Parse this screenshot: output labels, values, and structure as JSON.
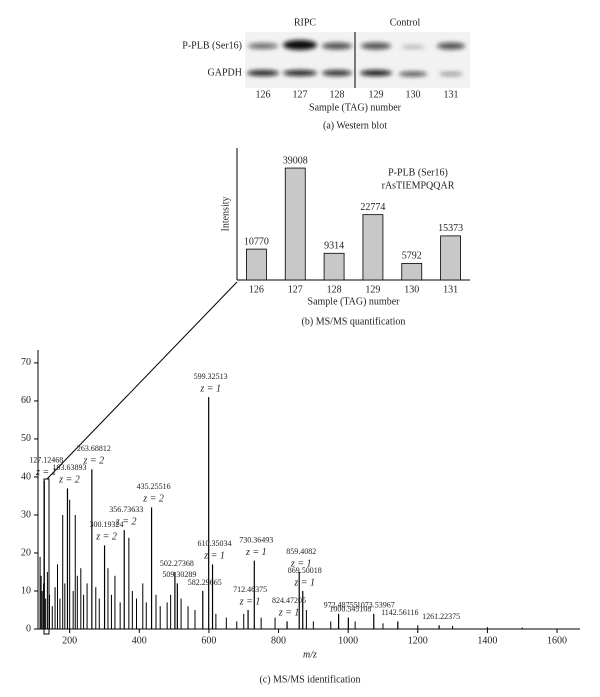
{
  "western_blot": {
    "groups": [
      "RIPC",
      "Control"
    ],
    "rows": [
      "P-PLB (Ser16)",
      "GAPDH"
    ],
    "lanes": [
      "126",
      "127",
      "128",
      "129",
      "130",
      "131"
    ],
    "xlabel": "Sample (TAG) number",
    "caption": "(a) Western blot"
  },
  "chart_data": [
    {
      "type": "bar",
      "categories": [
        "126",
        "127",
        "128",
        "129",
        "130",
        "131"
      ],
      "values": [
        10770,
        39008,
        9314,
        22774,
        5792,
        15373
      ],
      "color": "#c8c8c8",
      "ylim": [
        0,
        46000
      ],
      "xlabel": "Sample (TAG) number",
      "ylabel": "Intensity",
      "annotations": [
        "P-PLB (Ser16)",
        "rAsTIEMPQQAR"
      ],
      "caption": "(b) MS/MS quantification"
    },
    {
      "type": "spectrum",
      "xlim": [
        109,
        1666
      ],
      "ylim": [
        0,
        73.4
      ],
      "xticks": [
        200,
        400,
        600,
        800,
        1000,
        1200,
        1400,
        1600
      ],
      "yticks": [
        0,
        10,
        20,
        30,
        40,
        50,
        60,
        70
      ],
      "xlabel": "m/z",
      "caption": "(c) MS/MS identification",
      "color": "#000000",
      "peaks": [
        {
          "mz": 127.12468,
          "intensity": 39,
          "charge": "z = 1"
        },
        {
          "mz": 193.63893,
          "intensity": 37,
          "charge": "z = 2"
        },
        {
          "mz": 263.68812,
          "intensity": 42,
          "charge": "z = 2"
        },
        {
          "mz": 300.19324,
          "intensity": 22,
          "charge": "z = 2"
        },
        {
          "mz": 356.73633,
          "intensity": 26,
          "charge": "z = 2"
        },
        {
          "mz": 435.25516,
          "intensity": 32,
          "charge": "z = 2"
        },
        {
          "mz": 502.27368,
          "intensity": 15
        },
        {
          "mz": 509.30289,
          "intensity": 12
        },
        {
          "mz": 582.29665,
          "intensity": 10
        },
        {
          "mz": 599.32513,
          "intensity": 61,
          "charge": "z = 1"
        },
        {
          "mz": 610.35034,
          "intensity": 17,
          "charge": "z = 1"
        },
        {
          "mz": 712.46375,
          "intensity": 5,
          "charge": "z = 1"
        },
        {
          "mz": 730.36493,
          "intensity": 18,
          "charge": "z = 1"
        },
        {
          "mz": 824.47205,
          "intensity": 2,
          "charge": "z = 1"
        },
        {
          "mz": 859.4082,
          "intensity": 15,
          "charge": "z = 1"
        },
        {
          "mz": 869.50018,
          "intensity": 10,
          "charge": "z = 1"
        },
        {
          "mz": 972.48755,
          "intensity": 4
        },
        {
          "mz": 1000.545108,
          "intensity": 3
        },
        {
          "mz": 1073.53967,
          "intensity": 4
        },
        {
          "mz": 1142.56116,
          "intensity": 2
        },
        {
          "mz": 1261.22375,
          "intensity": 1
        }
      ],
      "x": [
        115,
        118,
        121,
        125,
        131,
        136,
        142,
        150,
        158,
        165,
        172,
        180,
        186,
        200,
        210,
        216,
        222,
        232,
        240,
        250,
        275,
        285,
        310,
        320,
        330,
        345,
        370,
        380,
        392,
        410,
        420,
        448,
        460,
        480,
        490,
        520,
        540,
        560,
        620,
        650,
        680,
        700,
        750,
        790,
        880,
        900,
        950,
        1020,
        1100,
        1200,
        1300,
        1400,
        1500
      ],
      "values": [
        19,
        14,
        10,
        12,
        8,
        15,
        9,
        6,
        11,
        17,
        8,
        30,
        12,
        34,
        10,
        30,
        14,
        16,
        9,
        12,
        11,
        8,
        16,
        9,
        14,
        7,
        24,
        10,
        8,
        12,
        7,
        9,
        6,
        7,
        9,
        8,
        6,
        5,
        4,
        3,
        2,
        4,
        3,
        3,
        5,
        2,
        2,
        2,
        1.5,
        1,
        0.8,
        0.5,
        0.4
      ]
    }
  ]
}
